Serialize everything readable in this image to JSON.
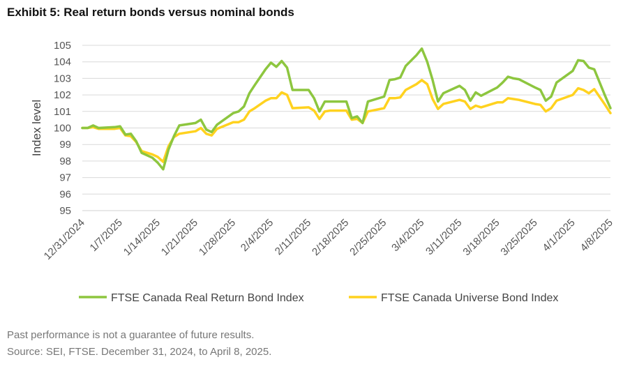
{
  "title": "Exhibit 5: Real return bonds versus nominal bonds",
  "footnotes": {
    "performance": "Past performance is not a guarantee of future results.",
    "source": "Source: SEI, FTSE. December 31, 2024, to April 8, 2025."
  },
  "chart_data": {
    "type": "line",
    "title": "Exhibit 5: Real return bonds versus nominal bonds",
    "xlabel": "",
    "ylabel": "Index level",
    "ylim": [
      95,
      105
    ],
    "yticks": [
      95,
      96,
      97,
      98,
      99,
      100,
      101,
      102,
      103,
      104,
      105
    ],
    "xlim": [
      "2024-12-31",
      "2025-04-08"
    ],
    "xticks": [
      "12/31/2024",
      "1/7/2025",
      "1/14/2025",
      "1/21/2025",
      "1/28/2025",
      "2/4/2025",
      "2/11/2025",
      "2/18/2025",
      "2/25/2025",
      "3/4/2025",
      "3/11/2025",
      "3/18/2025",
      "3/25/2025",
      "4/1/2025",
      "4/8/2025"
    ],
    "grid": true,
    "legend": "bottom",
    "series": [
      {
        "name": "FTSE Canada Real Return Bond Index",
        "color": "#8dc63f",
        "points": [
          [
            "2024-12-31",
            100.0
          ],
          [
            "2025-01-01",
            100.0
          ],
          [
            "2025-01-02",
            100.15
          ],
          [
            "2025-01-03",
            100.0
          ],
          [
            "2025-01-06",
            100.05
          ],
          [
            "2025-01-07",
            100.1
          ],
          [
            "2025-01-08",
            99.6
          ],
          [
            "2025-01-09",
            99.65
          ],
          [
            "2025-01-10",
            99.2
          ],
          [
            "2025-01-11",
            98.5
          ],
          [
            "2025-01-13",
            98.2
          ],
          [
            "2025-01-14",
            97.9
          ],
          [
            "2025-01-15",
            97.5
          ],
          [
            "2025-01-16",
            98.7
          ],
          [
            "2025-01-17",
            99.5
          ],
          [
            "2025-01-18",
            100.15
          ],
          [
            "2025-01-21",
            100.3
          ],
          [
            "2025-01-22",
            100.5
          ],
          [
            "2025-01-23",
            99.9
          ],
          [
            "2025-01-24",
            99.75
          ],
          [
            "2025-01-25",
            100.2
          ],
          [
            "2025-01-28",
            100.9
          ],
          [
            "2025-01-29",
            101.0
          ],
          [
            "2025-01-30",
            101.3
          ],
          [
            "2025-01-31",
            102.1
          ],
          [
            "2025-02-01",
            102.6
          ],
          [
            "2025-02-03",
            103.55
          ],
          [
            "2025-02-04",
            103.95
          ],
          [
            "2025-02-05",
            103.7
          ],
          [
            "2025-02-06",
            104.05
          ],
          [
            "2025-02-07",
            103.65
          ],
          [
            "2025-02-08",
            102.3
          ],
          [
            "2025-02-11",
            102.3
          ],
          [
            "2025-02-12",
            101.8
          ],
          [
            "2025-02-13",
            101.0
          ],
          [
            "2025-02-14",
            101.6
          ],
          [
            "2025-02-15",
            101.6
          ],
          [
            "2025-02-18",
            101.6
          ],
          [
            "2025-02-19",
            100.6
          ],
          [
            "2025-02-20",
            100.7
          ],
          [
            "2025-02-21",
            100.3
          ],
          [
            "2025-02-22",
            101.6
          ],
          [
            "2025-02-25",
            101.9
          ],
          [
            "2025-02-26",
            102.9
          ],
          [
            "2025-02-27",
            102.95
          ],
          [
            "2025-02-28",
            103.05
          ],
          [
            "2025-03-01",
            103.75
          ],
          [
            "2025-03-03",
            104.4
          ],
          [
            "2025-03-04",
            104.8
          ],
          [
            "2025-03-05",
            104.0
          ],
          [
            "2025-03-06",
            102.9
          ],
          [
            "2025-03-07",
            101.6
          ],
          [
            "2025-03-08",
            102.1
          ],
          [
            "2025-03-11",
            102.55
          ],
          [
            "2025-03-12",
            102.3
          ],
          [
            "2025-03-13",
            101.65
          ],
          [
            "2025-03-14",
            102.15
          ],
          [
            "2025-03-15",
            101.95
          ],
          [
            "2025-03-18",
            102.45
          ],
          [
            "2025-03-19",
            102.75
          ],
          [
            "2025-03-20",
            103.1
          ],
          [
            "2025-03-21",
            103.0
          ],
          [
            "2025-03-22",
            102.95
          ],
          [
            "2025-03-25",
            102.45
          ],
          [
            "2025-03-26",
            102.3
          ],
          [
            "2025-03-27",
            101.65
          ],
          [
            "2025-03-28",
            101.9
          ],
          [
            "2025-03-29",
            102.75
          ],
          [
            "2025-04-01",
            103.45
          ],
          [
            "2025-04-02",
            104.1
          ],
          [
            "2025-04-03",
            104.05
          ],
          [
            "2025-04-04",
            103.65
          ],
          [
            "2025-04-05",
            103.55
          ],
          [
            "2025-04-07",
            101.95
          ],
          [
            "2025-04-08",
            101.2
          ]
        ]
      },
      {
        "name": "FTSE Canada Universe Bond Index",
        "color": "#ffd21f",
        "points": [
          [
            "2024-12-31",
            100.0
          ],
          [
            "2025-01-01",
            100.0
          ],
          [
            "2025-01-02",
            100.05
          ],
          [
            "2025-01-03",
            99.95
          ],
          [
            "2025-01-06",
            99.95
          ],
          [
            "2025-01-07",
            100.0
          ],
          [
            "2025-01-08",
            99.55
          ],
          [
            "2025-01-09",
            99.5
          ],
          [
            "2025-01-10",
            99.15
          ],
          [
            "2025-01-11",
            98.6
          ],
          [
            "2025-01-13",
            98.4
          ],
          [
            "2025-01-14",
            98.25
          ],
          [
            "2025-01-15",
            97.95
          ],
          [
            "2025-01-16",
            98.9
          ],
          [
            "2025-01-17",
            99.45
          ],
          [
            "2025-01-18",
            99.65
          ],
          [
            "2025-01-21",
            99.8
          ],
          [
            "2025-01-22",
            100.0
          ],
          [
            "2025-01-23",
            99.65
          ],
          [
            "2025-01-24",
            99.55
          ],
          [
            "2025-01-25",
            99.95
          ],
          [
            "2025-01-28",
            100.35
          ],
          [
            "2025-01-29",
            100.35
          ],
          [
            "2025-01-30",
            100.5
          ],
          [
            "2025-01-31",
            101.0
          ],
          [
            "2025-02-01",
            101.2
          ],
          [
            "2025-02-03",
            101.65
          ],
          [
            "2025-02-04",
            101.8
          ],
          [
            "2025-02-05",
            101.8
          ],
          [
            "2025-02-06",
            102.15
          ],
          [
            "2025-02-07",
            102.0
          ],
          [
            "2025-02-08",
            101.2
          ],
          [
            "2025-02-11",
            101.25
          ],
          [
            "2025-02-12",
            101.05
          ],
          [
            "2025-02-13",
            100.55
          ],
          [
            "2025-02-14",
            101.0
          ],
          [
            "2025-02-15",
            101.05
          ],
          [
            "2025-02-18",
            101.05
          ],
          [
            "2025-02-19",
            100.5
          ],
          [
            "2025-02-20",
            100.55
          ],
          [
            "2025-02-21",
            100.3
          ],
          [
            "2025-02-22",
            101.0
          ],
          [
            "2025-02-25",
            101.2
          ],
          [
            "2025-02-26",
            101.8
          ],
          [
            "2025-02-27",
            101.8
          ],
          [
            "2025-02-28",
            101.85
          ],
          [
            "2025-03-01",
            102.3
          ],
          [
            "2025-03-03",
            102.65
          ],
          [
            "2025-03-04",
            102.9
          ],
          [
            "2025-03-05",
            102.65
          ],
          [
            "2025-03-06",
            101.75
          ],
          [
            "2025-03-07",
            101.15
          ],
          [
            "2025-03-08",
            101.45
          ],
          [
            "2025-03-11",
            101.7
          ],
          [
            "2025-03-12",
            101.6
          ],
          [
            "2025-03-13",
            101.15
          ],
          [
            "2025-03-14",
            101.35
          ],
          [
            "2025-03-15",
            101.25
          ],
          [
            "2025-03-18",
            101.55
          ],
          [
            "2025-03-19",
            101.55
          ],
          [
            "2025-03-20",
            101.8
          ],
          [
            "2025-03-21",
            101.75
          ],
          [
            "2025-03-22",
            101.7
          ],
          [
            "2025-03-25",
            101.45
          ],
          [
            "2025-03-26",
            101.4
          ],
          [
            "2025-03-27",
            101.0
          ],
          [
            "2025-03-28",
            101.2
          ],
          [
            "2025-03-29",
            101.65
          ],
          [
            "2025-04-01",
            102.0
          ],
          [
            "2025-04-02",
            102.4
          ],
          [
            "2025-04-03",
            102.3
          ],
          [
            "2025-04-04",
            102.1
          ],
          [
            "2025-04-05",
            102.35
          ],
          [
            "2025-04-07",
            101.4
          ],
          [
            "2025-04-08",
            100.9
          ]
        ]
      }
    ]
  }
}
